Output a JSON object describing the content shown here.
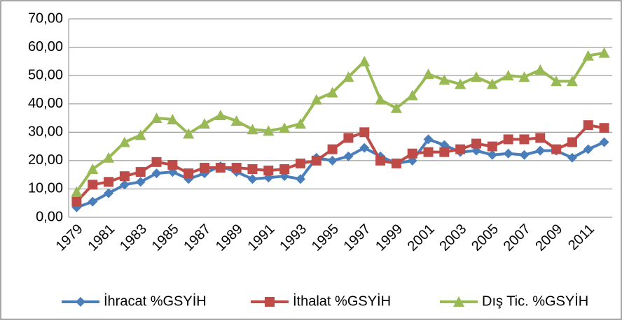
{
  "chart_data": {
    "type": "line",
    "categories": [
      "1979",
      null,
      "1981",
      null,
      "1983",
      null,
      "1985",
      null,
      "1987",
      null,
      "1989",
      null,
      "1991",
      null,
      "1993",
      null,
      "1995",
      null,
      "1997",
      null,
      "1999",
      null,
      "2001",
      null,
      "2003",
      null,
      "2005",
      null,
      "2007",
      null,
      "2009",
      null,
      "2011",
      null
    ],
    "series": [
      {
        "name": "İhracat %GSYİH",
        "color": "#4a7ebb",
        "marker": "diamond",
        "values": [
          3.5,
          5.5,
          8.5,
          11.5,
          12.5,
          15.5,
          16,
          13.5,
          15.5,
          18,
          16,
          13.5,
          14,
          14.5,
          13.5,
          21,
          20,
          21.5,
          24.5,
          21.5,
          19,
          20,
          27.5,
          25.5,
          23,
          23.5,
          22,
          22.5,
          22,
          23.5,
          23.5,
          21,
          24,
          26.5
        ]
      },
      {
        "name": "İthalat %GSYİH",
        "color": "#be4b48",
        "marker": "square",
        "values": [
          5.5,
          11.5,
          12.5,
          14.5,
          16,
          19.5,
          18.5,
          15.5,
          17.5,
          17.5,
          17.5,
          17,
          16.5,
          17,
          19,
          20,
          24,
          28,
          30,
          20,
          19,
          22.5,
          23,
          23,
          24,
          26,
          25,
          27.5,
          27.5,
          28,
          24,
          26.5,
          32.5,
          31.5
        ]
      },
      {
        "name": "Dış Tic. %GSYİH",
        "color": "#98b954",
        "marker": "triangle",
        "values": [
          9,
          17,
          21,
          26.5,
          29,
          35,
          34.5,
          29.5,
          33,
          36,
          34,
          31,
          30.5,
          31.5,
          33,
          41.5,
          44,
          49.5,
          55,
          41.5,
          38.5,
          43,
          50.5,
          48.5,
          47,
          49.5,
          47,
          50,
          49.5,
          52,
          48,
          48,
          57,
          58
        ]
      }
    ],
    "ylim": [
      0,
      70
    ],
    "yticks": [
      {
        "value": 0,
        "label": "0,00"
      },
      {
        "value": 10,
        "label": "10,00"
      },
      {
        "value": 20,
        "label": "20,00"
      },
      {
        "value": 30,
        "label": "30,00"
      },
      {
        "value": 40,
        "label": "40,00"
      },
      {
        "value": 50,
        "label": "50,00"
      },
      {
        "value": 60,
        "label": "60,00"
      },
      {
        "value": 70,
        "label": "70,00"
      }
    ],
    "grid": true,
    "legend": "bottom"
  }
}
